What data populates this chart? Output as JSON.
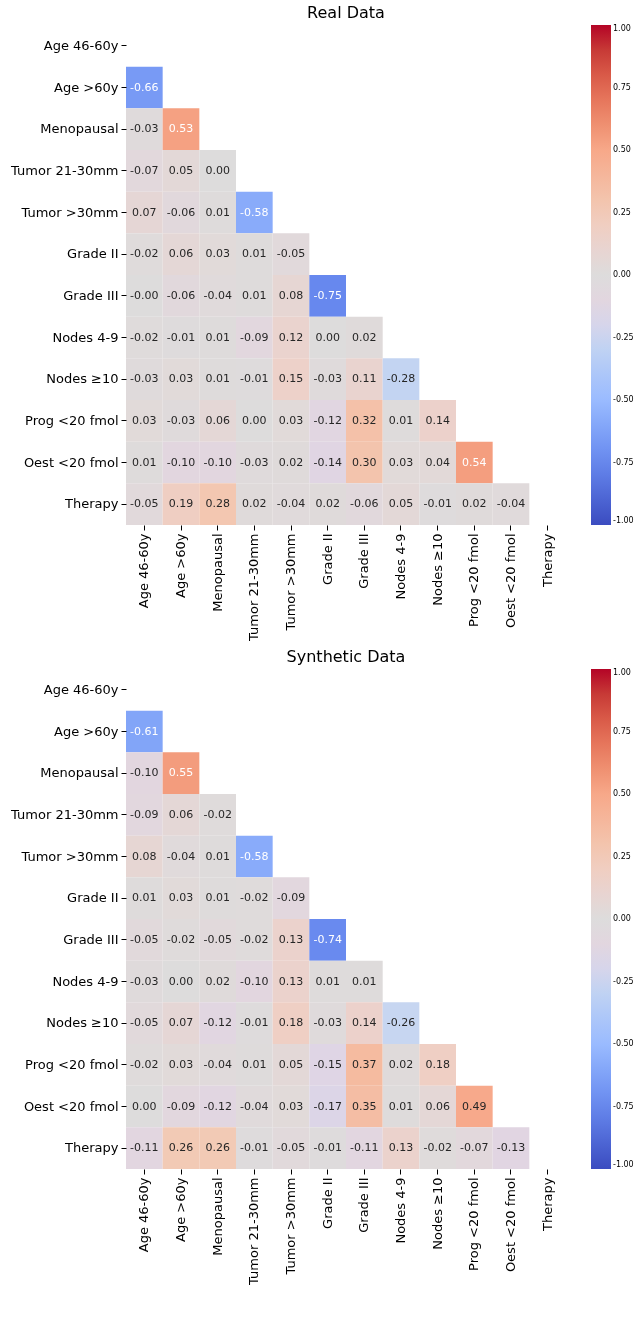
{
  "chart_data": [
    {
      "type": "heatmap",
      "title": "Real Data",
      "categories": [
        "Age 46-60y",
        "Age >60y",
        "Menopausal",
        "Tumor 21-30mm",
        "Tumor >30mm",
        "Grade II",
        "Grade III",
        "Nodes 4-9",
        "Nodes ≥10",
        "Prog <20 fmol",
        "Oest <20 fmol",
        "Therapy"
      ],
      "y_categories": [
        "Age 46-60y",
        "Age >60y",
        "Menopausal",
        "Tumor 21-30mm",
        "Tumor >30mm",
        "Grade II",
        "Grade III",
        "Nodes 4-9",
        "Nodes ≥10",
        "Prog <20 fmol",
        "Oest <20 fmol",
        "Therapy"
      ],
      "cells": [
        [
          null,
          null,
          null,
          null,
          null,
          null,
          null,
          null,
          null,
          null,
          null,
          null
        ],
        [
          -0.66,
          null,
          null,
          null,
          null,
          null,
          null,
          null,
          null,
          null,
          null,
          null
        ],
        [
          -0.03,
          0.53,
          null,
          null,
          null,
          null,
          null,
          null,
          null,
          null,
          null,
          null
        ],
        [
          -0.07,
          0.05,
          0.0,
          null,
          null,
          null,
          null,
          null,
          null,
          null,
          null,
          null
        ],
        [
          0.07,
          -0.06,
          0.01,
          -0.58,
          null,
          null,
          null,
          null,
          null,
          null,
          null,
          null
        ],
        [
          -0.02,
          0.06,
          0.03,
          0.01,
          -0.05,
          null,
          null,
          null,
          null,
          null,
          null,
          null
        ],
        [
          0,
          -0.06,
          -0.04,
          0.01,
          0.08,
          -0.75,
          null,
          null,
          null,
          null,
          null,
          null
        ],
        [
          -0.02,
          -0.01,
          0.01,
          -0.09,
          0.12,
          0.0,
          0.02,
          null,
          null,
          null,
          null,
          null
        ],
        [
          -0.03,
          0.03,
          0.01,
          -0.01,
          0.15,
          -0.03,
          0.11,
          -0.28,
          null,
          null,
          null,
          null
        ],
        [
          0.03,
          -0.03,
          0.06,
          0.0,
          0.03,
          -0.12,
          0.32,
          0.01,
          0.14,
          null,
          null,
          null
        ],
        [
          0.01,
          -0.1,
          -0.1,
          -0.03,
          0.02,
          -0.14,
          0.3,
          0.03,
          0.04,
          0.54,
          null,
          null
        ],
        [
          -0.05,
          0.19,
          0.28,
          0.02,
          -0.04,
          0.02,
          -0.06,
          0.05,
          -0.01,
          0.02,
          -0.04,
          null
        ]
      ],
      "cell_labels": [
        [
          null,
          null,
          null,
          null,
          null,
          null,
          null,
          null,
          null,
          null,
          null,
          null
        ],
        [
          "-0.66",
          null,
          null,
          null,
          null,
          null,
          null,
          null,
          null,
          null,
          null,
          null
        ],
        [
          "-0.03",
          "0.53",
          null,
          null,
          null,
          null,
          null,
          null,
          null,
          null,
          null,
          null
        ],
        [
          "-0.07",
          "0.05",
          "0.00",
          null,
          null,
          null,
          null,
          null,
          null,
          null,
          null,
          null
        ],
        [
          "0.07",
          "-0.06",
          "0.01",
          "-0.58",
          null,
          null,
          null,
          null,
          null,
          null,
          null,
          null
        ],
        [
          "-0.02",
          "0.06",
          "0.03",
          "0.01",
          "-0.05",
          null,
          null,
          null,
          null,
          null,
          null,
          null
        ],
        [
          "-0.00",
          "-0.06",
          "-0.04",
          "0.01",
          "0.08",
          "-0.75",
          null,
          null,
          null,
          null,
          null,
          null
        ],
        [
          "-0.02",
          "-0.01",
          "0.01",
          "-0.09",
          "0.12",
          "0.00",
          "0.02",
          null,
          null,
          null,
          null,
          null
        ],
        [
          "-0.03",
          "0.03",
          "0.01",
          "-0.01",
          "0.15",
          "-0.03",
          "0.11",
          "-0.28",
          null,
          null,
          null,
          null
        ],
        [
          "0.03",
          "-0.03",
          "0.06",
          "0.00",
          "0.03",
          "-0.12",
          "0.32",
          "0.01",
          "0.14",
          null,
          null,
          null
        ],
        [
          "0.01",
          "-0.10",
          "-0.10",
          "-0.03",
          "0.02",
          "-0.14",
          "0.30",
          "0.03",
          "0.04",
          "0.54",
          null,
          null
        ],
        [
          "-0.05",
          "0.19",
          "0.28",
          "0.02",
          "-0.04",
          "0.02",
          "-0.06",
          "0.05",
          "-0.01",
          "0.02",
          "-0.04",
          null
        ]
      ],
      "clim": [
        -1,
        1
      ],
      "cticks": [
        {
          "value": -1,
          "label": "-1.00"
        },
        {
          "value": -0.75,
          "label": "-0.75"
        },
        {
          "value": -0.5,
          "label": "-0.50"
        },
        {
          "value": -0.25,
          "label": "-0.25"
        },
        {
          "value": 0,
          "label": "0.00"
        },
        {
          "value": 0.25,
          "label": "0.25"
        },
        {
          "value": 0.5,
          "label": "0.50"
        },
        {
          "value": 0.75,
          "label": "0.75"
        },
        {
          "value": 1,
          "label": "1.00"
        }
      ]
    },
    {
      "type": "heatmap",
      "title": "Synthetic Data",
      "categories": [
        "Age 46-60y",
        "Age >60y",
        "Menopausal",
        "Tumor 21-30mm",
        "Tumor >30mm",
        "Grade II",
        "Grade III",
        "Nodes 4-9",
        "Nodes ≥10",
        "Prog <20 fmol",
        "Oest <20 fmol",
        "Therapy"
      ],
      "y_categories": [
        "Age 46-60y",
        "Age >60y",
        "Menopausal",
        "Tumor 21-30mm",
        "Tumor >30mm",
        "Grade II",
        "Grade III",
        "Nodes 4-9",
        "Nodes ≥10",
        "Prog <20 fmol",
        "Oest <20 fmol",
        "Therapy"
      ],
      "cells": [
        [
          null,
          null,
          null,
          null,
          null,
          null,
          null,
          null,
          null,
          null,
          null,
          null
        ],
        [
          -0.61,
          null,
          null,
          null,
          null,
          null,
          null,
          null,
          null,
          null,
          null,
          null
        ],
        [
          -0.1,
          0.55,
          null,
          null,
          null,
          null,
          null,
          null,
          null,
          null,
          null,
          null
        ],
        [
          -0.09,
          0.06,
          -0.02,
          null,
          null,
          null,
          null,
          null,
          null,
          null,
          null,
          null
        ],
        [
          0.08,
          -0.04,
          0.01,
          -0.58,
          null,
          null,
          null,
          null,
          null,
          null,
          null,
          null
        ],
        [
          0.01,
          0.03,
          0.01,
          -0.02,
          -0.09,
          null,
          null,
          null,
          null,
          null,
          null,
          null
        ],
        [
          -0.05,
          -0.02,
          -0.05,
          -0.02,
          0.13,
          -0.74,
          null,
          null,
          null,
          null,
          null,
          null
        ],
        [
          -0.03,
          0.0,
          0.02,
          -0.1,
          0.13,
          0.01,
          0.01,
          null,
          null,
          null,
          null,
          null
        ],
        [
          -0.05,
          0.07,
          -0.12,
          -0.01,
          0.18,
          -0.03,
          0.14,
          -0.26,
          null,
          null,
          null,
          null
        ],
        [
          -0.02,
          0.03,
          -0.04,
          0.01,
          0.05,
          -0.15,
          0.37,
          0.02,
          0.18,
          null,
          null,
          null
        ],
        [
          0.0,
          -0.09,
          -0.12,
          -0.04,
          0.03,
          -0.17,
          0.35,
          0.01,
          0.06,
          0.49,
          null,
          null
        ],
        [
          -0.11,
          0.26,
          0.26,
          -0.01,
          -0.05,
          -0.01,
          -0.11,
          0.13,
          -0.02,
          -0.07,
          -0.13,
          null
        ]
      ],
      "cell_labels": [
        [
          null,
          null,
          null,
          null,
          null,
          null,
          null,
          null,
          null,
          null,
          null,
          null
        ],
        [
          "-0.61",
          null,
          null,
          null,
          null,
          null,
          null,
          null,
          null,
          null,
          null,
          null
        ],
        [
          "-0.10",
          "0.55",
          null,
          null,
          null,
          null,
          null,
          null,
          null,
          null,
          null,
          null
        ],
        [
          "-0.09",
          "0.06",
          "-0.02",
          null,
          null,
          null,
          null,
          null,
          null,
          null,
          null,
          null
        ],
        [
          "0.08",
          "-0.04",
          "0.01",
          "-0.58",
          null,
          null,
          null,
          null,
          null,
          null,
          null,
          null
        ],
        [
          "0.01",
          "0.03",
          "0.01",
          "-0.02",
          "-0.09",
          null,
          null,
          null,
          null,
          null,
          null,
          null
        ],
        [
          "-0.05",
          "-0.02",
          "-0.05",
          "-0.02",
          "0.13",
          "-0.74",
          null,
          null,
          null,
          null,
          null,
          null
        ],
        [
          "-0.03",
          "0.00",
          "0.02",
          "-0.10",
          "0.13",
          "0.01",
          "0.01",
          null,
          null,
          null,
          null,
          null
        ],
        [
          "-0.05",
          "0.07",
          "-0.12",
          "-0.01",
          "0.18",
          "-0.03",
          "0.14",
          "-0.26",
          null,
          null,
          null,
          null
        ],
        [
          "-0.02",
          "0.03",
          "-0.04",
          "0.01",
          "0.05",
          "-0.15",
          "0.37",
          "0.02",
          "0.18",
          null,
          null,
          null
        ],
        [
          "0.00",
          "-0.09",
          "-0.12",
          "-0.04",
          "0.03",
          "-0.17",
          "0.35",
          "0.01",
          "0.06",
          "0.49",
          null,
          null
        ],
        [
          "-0.11",
          "0.26",
          "0.26",
          "-0.01",
          "-0.05",
          "-0.01",
          "-0.11",
          "0.13",
          "-0.02",
          "-0.07",
          "-0.13",
          null
        ]
      ],
      "clim": [
        -1,
        1
      ],
      "cticks": [
        {
          "value": -1,
          "label": "-1.00"
        },
        {
          "value": -0.75,
          "label": "-0.75"
        },
        {
          "value": -0.5,
          "label": "-0.50"
        },
        {
          "value": -0.25,
          "label": "-0.25"
        },
        {
          "value": 0,
          "label": "0.00"
        },
        {
          "value": 0.25,
          "label": "0.25"
        },
        {
          "value": 0.5,
          "label": "0.50"
        },
        {
          "value": 0.75,
          "label": "0.75"
        },
        {
          "value": 1,
          "label": "1.00"
        }
      ]
    }
  ]
}
